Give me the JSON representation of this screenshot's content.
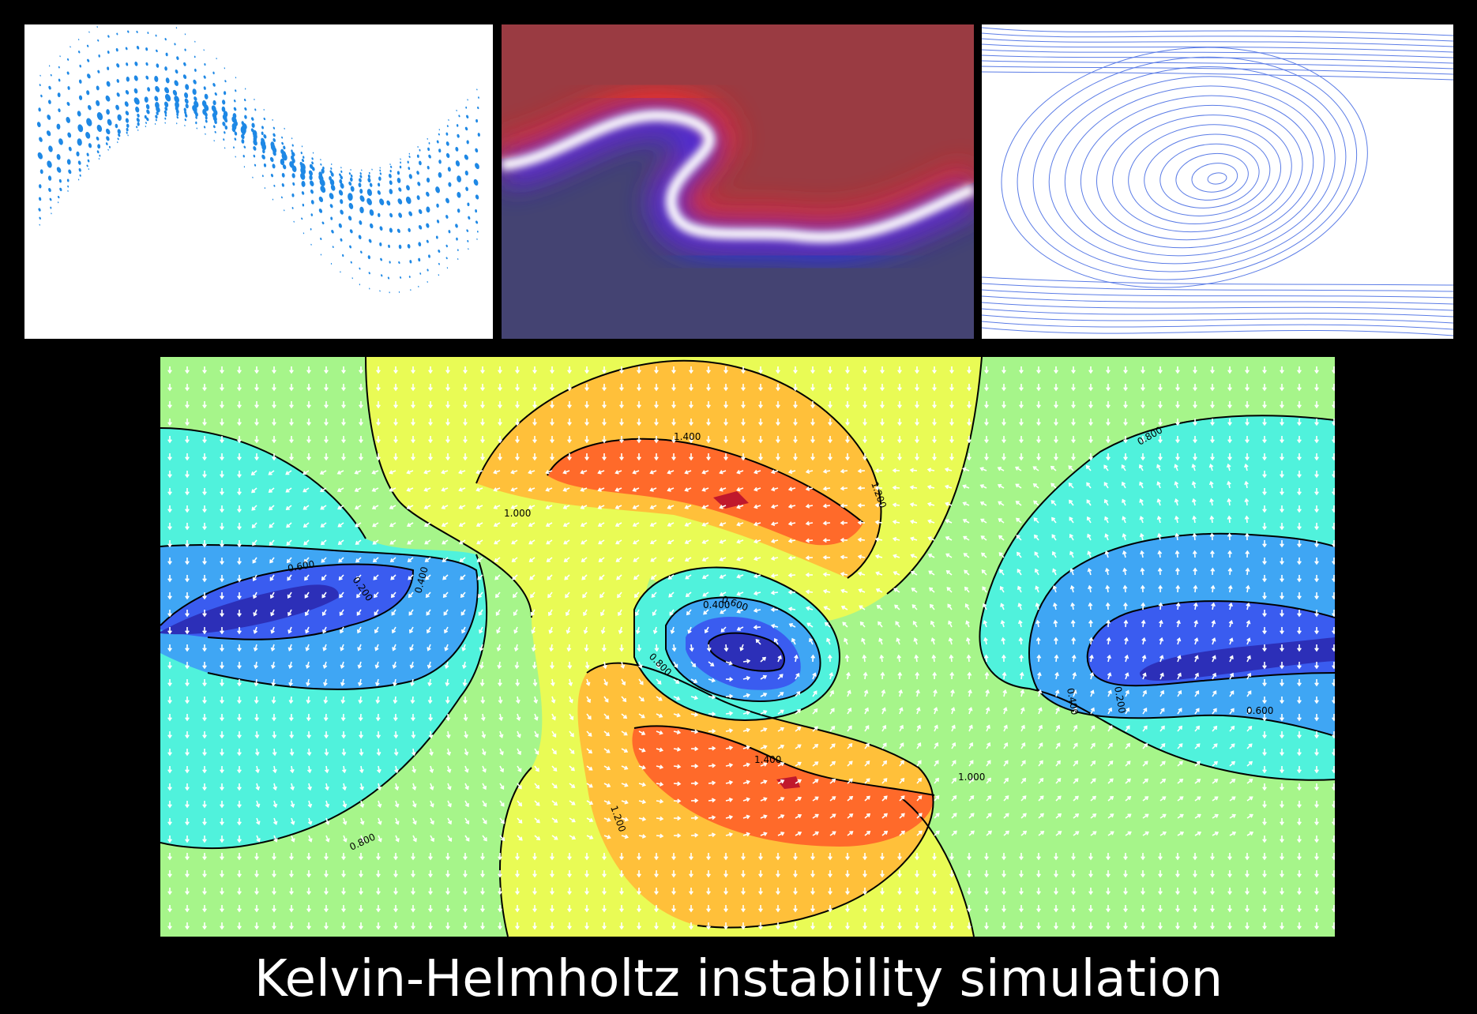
{
  "caption": "Kelvin-Helmholtz instability simulation",
  "panels": [
    {
      "name": "particle-panel",
      "colors": {
        "particle": "#1e88e5",
        "background": "#ffffff"
      }
    },
    {
      "name": "density-panel",
      "colors": {
        "top": "#9a3b42",
        "bottom": "#444372",
        "interface": "#ffffff"
      }
    },
    {
      "name": "streamline-panel",
      "colors": {
        "line": "#5b7ce6",
        "background": "#ffffff"
      }
    },
    {
      "name": "contour-panel",
      "colors": {
        "arrows": "#ffffff",
        "levels_fill": [
          "#2c2fb8",
          "#3a5cf0",
          "#3fa6f4",
          "#50f2dc",
          "#a6f58a",
          "#e9fb55",
          "#ffc03a",
          "#ff6a2a",
          "#c0182c"
        ]
      }
    }
  ],
  "contour_labels": [
    "1.400",
    "1.200",
    "1.000",
    "0.800",
    "0.600",
    "0.200",
    "0.400",
    "0.600",
    "0.400",
    "0.800",
    "0.400",
    "0.200",
    "0.600",
    "0.800",
    "1.400",
    "1.000",
    "1.200"
  ]
}
